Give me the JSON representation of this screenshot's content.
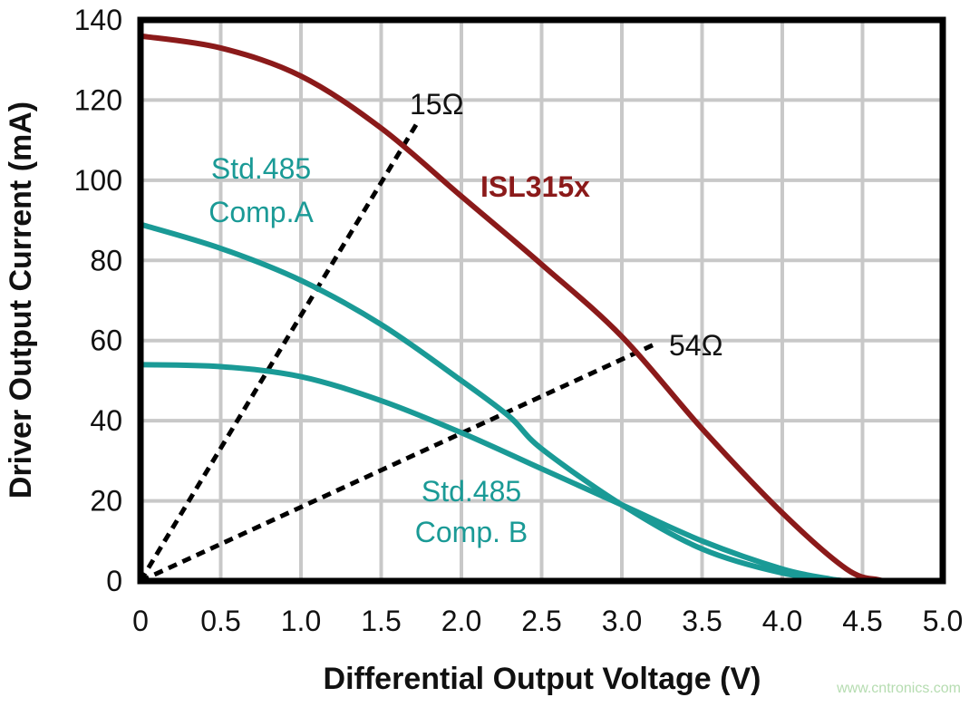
{
  "chart_data": {
    "type": "line",
    "title": "",
    "xlabel": "Differential Output Voltage (V)",
    "ylabel": "Driver Output Current (mA)",
    "xlim": [
      0,
      5.0
    ],
    "ylim": [
      0,
      140
    ],
    "xticks": [
      "0",
      "0.5",
      "1.0",
      "1.5",
      "2.0",
      "2.5",
      "3.0",
      "3.5",
      "4.0",
      "4.5",
      "5.0"
    ],
    "yticks": [
      "0",
      "20",
      "40",
      "60",
      "80",
      "100",
      "120",
      "140"
    ],
    "grid": true,
    "series": [
      {
        "name": "ISL315x",
        "color": "#8b1a1a",
        "x": [
          0,
          0.5,
          1.0,
          1.5,
          2.0,
          2.5,
          3.0,
          3.5,
          4.0,
          4.4,
          4.6,
          4.7
        ],
        "y": [
          136,
          133,
          126,
          113,
          96,
          79,
          61,
          38,
          17,
          3,
          0.3,
          0
        ]
      },
      {
        "name": "Std.485 Comp.A",
        "label_lines": [
          "Std.485",
          "Comp.A"
        ],
        "color": "#1a9a96",
        "x": [
          0,
          0.5,
          1.0,
          1.5,
          2.0,
          2.3,
          2.5,
          3.0,
          3.5,
          4.0,
          4.4
        ],
        "y": [
          89,
          83,
          75,
          64,
          50,
          41,
          33,
          19,
          8,
          2,
          0
        ]
      },
      {
        "name": "Std.485 Comp. B",
        "label_lines": [
          "Std.485",
          "Comp. B"
        ],
        "color": "#1a9a96",
        "x": [
          0,
          0.5,
          1.0,
          1.5,
          2.0,
          2.5,
          3.0,
          3.5,
          4.0,
          4.3,
          4.4
        ],
        "y": [
          54,
          53.5,
          51,
          45,
          37,
          28,
          19,
          10,
          3,
          0.5,
          0
        ]
      }
    ],
    "load_lines": [
      {
        "name": "15Ω",
        "x": [
          0,
          1.72
        ],
        "y": [
          0,
          114
        ],
        "style": "dashed",
        "color": "#000000"
      },
      {
        "name": "54Ω",
        "x": [
          0,
          3.2
        ],
        "y": [
          0,
          59
        ],
        "style": "dashed",
        "color": "#000000"
      }
    ]
  },
  "watermark": "www.cntronics.com"
}
